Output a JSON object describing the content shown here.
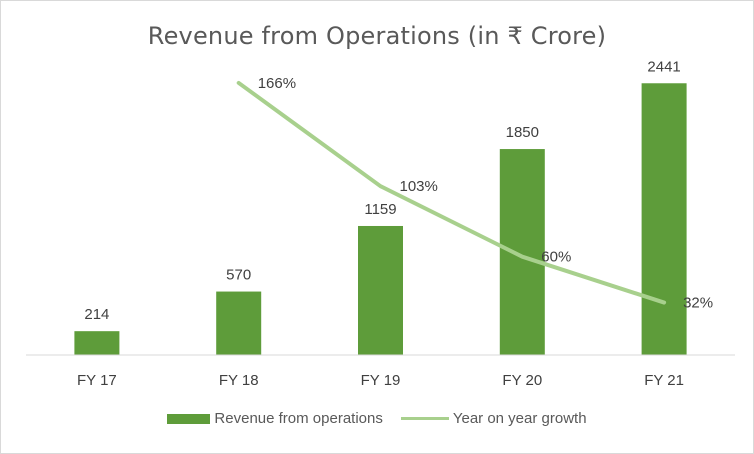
{
  "chart_data": {
    "type": "bar",
    "title": "Revenue from Operations (in ₹ Crore)",
    "categories": [
      "FY 17",
      "FY 18",
      "FY 19",
      "FY 20",
      "FY 21"
    ],
    "series": [
      {
        "name": "Revenue from operations",
        "type": "bar",
        "values": [
          214,
          570,
          1159,
          1850,
          2441
        ],
        "labels": [
          "214",
          "570",
          "1159",
          "1850",
          "2441"
        ],
        "color": "#5e9c3a"
      },
      {
        "name": "Year on year growth",
        "type": "line",
        "values": [
          null,
          166,
          103,
          60,
          32
        ],
        "labels": [
          "",
          "166%",
          "103%",
          "60%",
          "32%"
        ],
        "unit": "%",
        "color": "#a8d08d"
      }
    ],
    "ylim": [
      0,
      2650
    ],
    "y2lim": [
      0,
      180
    ],
    "xlabel": "",
    "ylabel": "",
    "grid": false,
    "legend_position": "bottom"
  }
}
